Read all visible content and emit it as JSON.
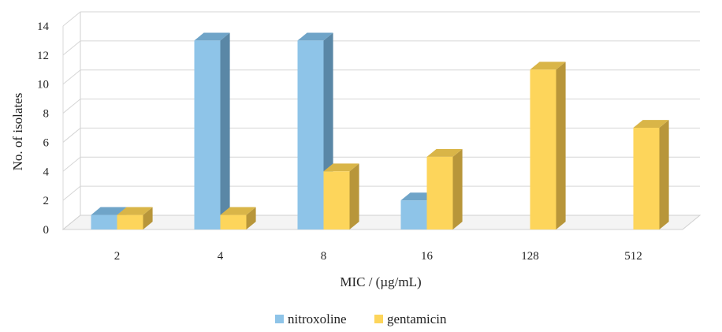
{
  "chart_data": {
    "type": "bar",
    "style": "3d-clustered-column",
    "categories": [
      "2",
      "4",
      "8",
      "16",
      "128",
      "512"
    ],
    "series": [
      {
        "name": "nitroxoline",
        "values": [
          1,
          13,
          13,
          2,
          0,
          0
        ],
        "color": "#8ec4e8",
        "side_color": "#5a87a6",
        "top_color": "#6fa4c8"
      },
      {
        "name": "gentamicin",
        "values": [
          1,
          1,
          4,
          5,
          11,
          7
        ],
        "color": "#fdd55b",
        "side_color": "#b8963a",
        "top_color": "#d9b548"
      }
    ],
    "xlabel": "MIC / (µg/mL)",
    "ylabel": "No. of isolates",
    "ylim": [
      0,
      14
    ],
    "yticks": [
      "0",
      "2",
      "4",
      "6",
      "8",
      "10",
      "12",
      "14"
    ],
    "grid": true,
    "legend_position": "bottom"
  }
}
